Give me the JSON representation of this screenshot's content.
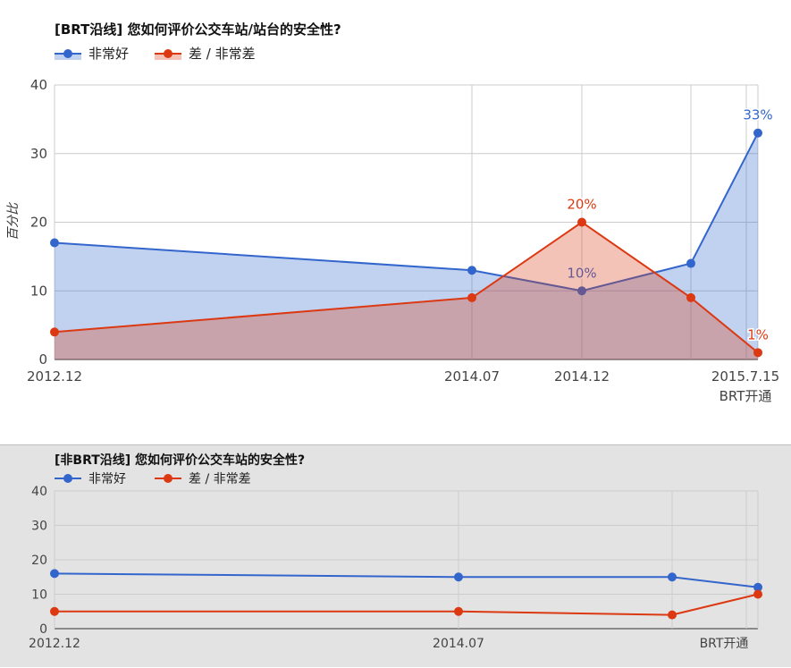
{
  "colors": {
    "good": "#3366cc",
    "bad": "#dc3912"
  },
  "chart_data": [
    {
      "type": "area",
      "title": "[BRT沿线] 您如何评价公交车站/站台的安全性?",
      "ylabel": "百分比",
      "ylim": [
        0,
        40
      ],
      "yticks": [
        0,
        10,
        20,
        30,
        40
      ],
      "x": [
        "2012.12",
        "2014.07",
        "2014.12",
        "2015.03",
        "2015.7.15"
      ],
      "tick_labels": [
        "2012.12",
        "",
        "2014.07",
        "2014.12",
        "",
        "2015.7.15"
      ],
      "annotation": "BRT开通",
      "series": [
        {
          "name": "非常好",
          "values": [
            17,
            13,
            10,
            14,
            33
          ],
          "data_labels": [
            "",
            "",
            "10%",
            "",
            "33%"
          ]
        },
        {
          "name": "差 / 非常差",
          "values": [
            4,
            9,
            20,
            9,
            1
          ],
          "data_labels": [
            "",
            "",
            "20%",
            "",
            "1%"
          ]
        }
      ],
      "grid": true,
      "legend": "top-left"
    },
    {
      "type": "line",
      "title": "[非BRT沿线] 您如何评价公交车站的安全性?",
      "ylim": [
        0,
        40
      ],
      "yticks": [
        0,
        10,
        20,
        30,
        40
      ],
      "x": [
        "2012.12",
        "2014.07",
        "2015.03",
        "2015.7.15"
      ],
      "tick_labels": [
        "2012.12",
        "2014.07",
        "",
        ""
      ],
      "annotation": "BRT开通",
      "series": [
        {
          "name": "非常好",
          "values": [
            16,
            15,
            15,
            12
          ]
        },
        {
          "name": "差 / 非常差",
          "values": [
            5,
            5,
            4,
            10
          ]
        }
      ],
      "grid": true,
      "legend": "top-left"
    }
  ]
}
